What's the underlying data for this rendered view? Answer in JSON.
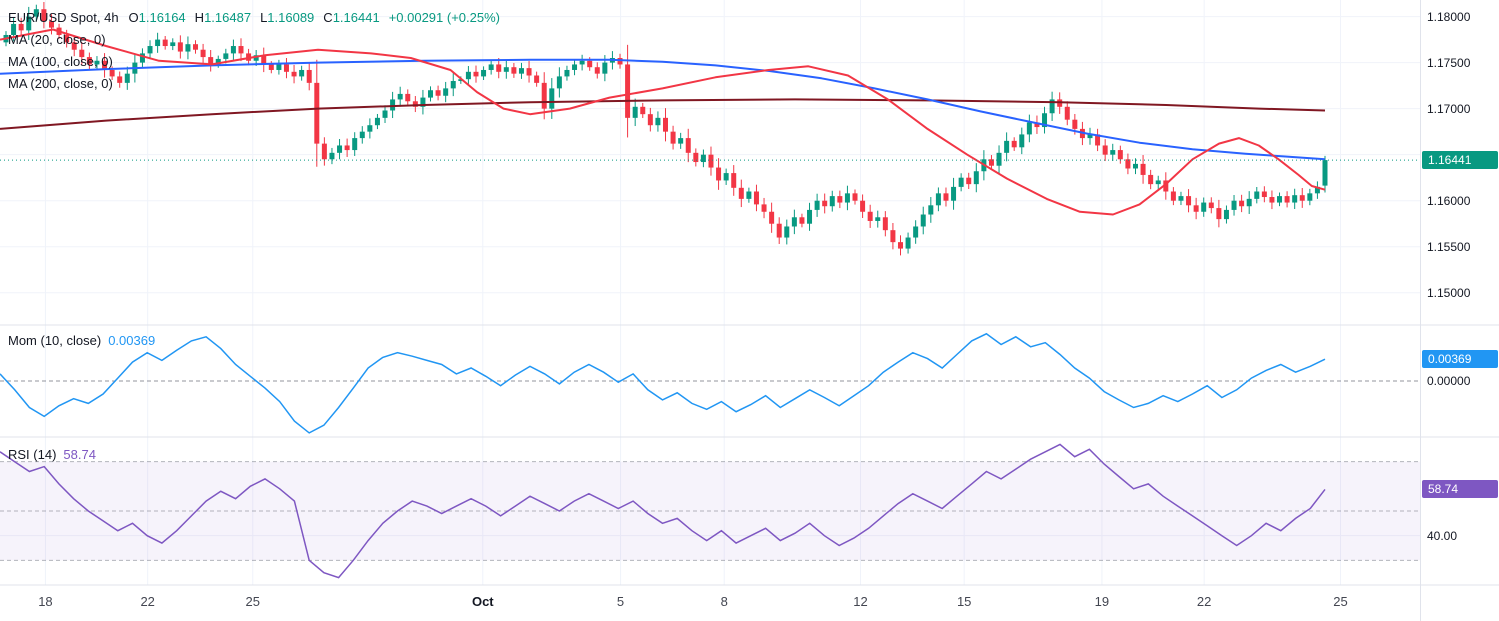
{
  "colors": {
    "up": "#089981",
    "down": "#f23645",
    "ma20": "#f23645",
    "ma100": "#2962ff",
    "ma200": "#801722",
    "mom": "#2196f3",
    "rsi": "#7e57c2",
    "grid": "#f0f3fa",
    "separator": "#e0e3eb",
    "dashed": "#787b86",
    "axis_text": "#131722",
    "time_text": "#434651",
    "legend_text": "#131722",
    "price_badge_bg": "#089981",
    "mom_badge_bg": "#2196f3",
    "rsi_badge_bg": "#7e57c2"
  },
  "legend": {
    "symbol": "EUR/USD Spot, 4h",
    "open_label": "O",
    "open": "1.16164",
    "high_label": "H",
    "high": "1.16487",
    "low_label": "L",
    "low": "1.16089",
    "close_label": "C",
    "close": "1.16441",
    "change": "+0.00291 (+0.25%)",
    "overlays": [
      "MA (20, close, 0)",
      "MA (100, close, 0)",
      "MA (200, close, 0)"
    ]
  },
  "mom_legend": {
    "label": "Mom (10, close)",
    "value": "0.00369"
  },
  "rsi_legend": {
    "label": "RSI (14)",
    "value": "58.74"
  },
  "axis": {
    "price_ticks": [
      {
        "label": "1.18000",
        "value": 1.18
      },
      {
        "label": "1.17500",
        "value": 1.175
      },
      {
        "label": "1.17000",
        "value": 1.17
      },
      {
        "label": "1.16000",
        "value": 1.16
      },
      {
        "label": "1.15500",
        "value": 1.155
      },
      {
        "label": "1.15000",
        "value": 1.15
      }
    ],
    "price_badge": {
      "label": "1.16441",
      "value": 1.16441
    },
    "mom_ticks": [
      {
        "label": "0.00000",
        "value": 0
      }
    ],
    "mom_badge": {
      "label": "0.00369",
      "value": 0.00369
    },
    "rsi_ticks": [
      {
        "label": "40.00",
        "value": 40
      }
    ],
    "rsi_badge": {
      "label": "58.74",
      "value": 58.74
    },
    "time_ticks": [
      {
        "label": "18",
        "f": 0.032,
        "bold": false
      },
      {
        "label": "22",
        "f": 0.104,
        "bold": false
      },
      {
        "label": "25",
        "f": 0.178,
        "bold": false
      },
      {
        "label": "Oct",
        "f": 0.34,
        "bold": true
      },
      {
        "label": "5",
        "f": 0.437,
        "bold": false
      },
      {
        "label": "8",
        "f": 0.51,
        "bold": false
      },
      {
        "label": "12",
        "f": 0.606,
        "bold": false
      },
      {
        "label": "15",
        "f": 0.679,
        "bold": false
      },
      {
        "label": "19",
        "f": 0.776,
        "bold": false
      },
      {
        "label": "22",
        "f": 0.848,
        "bold": false
      },
      {
        "label": "25",
        "f": 0.944,
        "bold": false
      }
    ]
  },
  "chart_data": [
    {
      "type": "candlestick",
      "title": "EUR/USD Spot, 4h",
      "ylim": [
        1.1465,
        1.1818
      ],
      "y_ticks": [
        1.18,
        1.175,
        1.17,
        1.165,
        1.16,
        1.155,
        1.15
      ],
      "x_labels": [
        "18",
        "22",
        "25",
        "Oct",
        "5",
        "8",
        "12",
        "15",
        "19",
        "22",
        "25"
      ],
      "last_candle": {
        "open": 1.16164,
        "high": 1.16487,
        "low": 1.16089,
        "close": 1.16441,
        "change_abs": 0.00291,
        "change_pct": 0.25
      },
      "closes": [
        1.178,
        1.1792,
        1.1785,
        1.18,
        1.1808,
        1.1795,
        1.1788,
        1.178,
        1.1772,
        1.1764,
        1.1756,
        1.1748,
        1.1752,
        1.1742,
        1.1735,
        1.1728,
        1.1738,
        1.175,
        1.176,
        1.1768,
        1.1775,
        1.1768,
        1.1772,
        1.1762,
        1.177,
        1.1764,
        1.1756,
        1.1748,
        1.1754,
        1.176,
        1.1768,
        1.176,
        1.1752,
        1.1758,
        1.1748,
        1.1742,
        1.1748,
        1.174,
        1.1735,
        1.1742,
        1.1728,
        1.1662,
        1.1645,
        1.1652,
        1.166,
        1.1655,
        1.1668,
        1.1675,
        1.1682,
        1.169,
        1.1698,
        1.171,
        1.1716,
        1.1708,
        1.1702,
        1.1712,
        1.172,
        1.1714,
        1.1722,
        1.173,
        1.1732,
        1.174,
        1.1735,
        1.1742,
        1.1748,
        1.174,
        1.1745,
        1.1738,
        1.1744,
        1.1736,
        1.1728,
        1.17,
        1.1722,
        1.1735,
        1.1742,
        1.1748,
        1.1752,
        1.1745,
        1.1738,
        1.175,
        1.1755,
        1.1748,
        1.169,
        1.1702,
        1.1694,
        1.1682,
        1.169,
        1.1675,
        1.1662,
        1.1668,
        1.1652,
        1.1642,
        1.165,
        1.1636,
        1.1622,
        1.163,
        1.1614,
        1.1602,
        1.161,
        1.1596,
        1.1588,
        1.1575,
        1.156,
        1.1572,
        1.1582,
        1.1575,
        1.159,
        1.16,
        1.1594,
        1.1605,
        1.1598,
        1.1608,
        1.16,
        1.1588,
        1.1578,
        1.1582,
        1.1568,
        1.1555,
        1.1548,
        1.156,
        1.1572,
        1.1585,
        1.1595,
        1.1608,
        1.16,
        1.1615,
        1.1625,
        1.1618,
        1.1632,
        1.1645,
        1.1638,
        1.1652,
        1.1665,
        1.1658,
        1.1672,
        1.1685,
        1.168,
        1.1695,
        1.171,
        1.1702,
        1.1688,
        1.1678,
        1.1668,
        1.1672,
        1.166,
        1.165,
        1.1655,
        1.1645,
        1.1635,
        1.164,
        1.1628,
        1.1618,
        1.1622,
        1.161,
        1.16,
        1.1605,
        1.1595,
        1.1588,
        1.1598,
        1.1592,
        1.158,
        1.159,
        1.16,
        1.1594,
        1.1602,
        1.161,
        1.1604,
        1.1598,
        1.1605,
        1.1598,
        1.1606,
        1.16,
        1.1608,
        1.1615,
        1.16441
      ],
      "overlays": [
        {
          "name": "MA (20, close, 0)",
          "color_key": "ma20",
          "points": [
            [
              0,
              1.1775
            ],
            [
              0.04,
              1.1786
            ],
            [
              0.08,
              1.1768
            ],
            [
              0.12,
              1.1752
            ],
            [
              0.16,
              1.1748
            ],
            [
              0.2,
              1.1758
            ],
            [
              0.24,
              1.1764
            ],
            [
              0.28,
              1.176
            ],
            [
              0.31,
              1.1755
            ],
            [
              0.34,
              1.1742
            ],
            [
              0.36,
              1.1718
            ],
            [
              0.38,
              1.17
            ],
            [
              0.4,
              1.1694
            ],
            [
              0.43,
              1.17
            ],
            [
              0.46,
              1.1712
            ],
            [
              0.5,
              1.1722
            ],
            [
              0.54,
              1.1734
            ],
            [
              0.58,
              1.1742
            ],
            [
              0.61,
              1.1746
            ],
            [
              0.64,
              1.1736
            ],
            [
              0.67,
              1.171
            ],
            [
              0.7,
              1.1678
            ],
            [
              0.73,
              1.165
            ],
            [
              0.76,
              1.1624
            ],
            [
              0.79,
              1.1602
            ],
            [
              0.815,
              1.1588
            ],
            [
              0.84,
              1.1585
            ],
            [
              0.86,
              1.1596
            ],
            [
              0.88,
              1.1618
            ],
            [
              0.9,
              1.1645
            ],
            [
              0.92,
              1.1662
            ],
            [
              0.935,
              1.1668
            ],
            [
              0.95,
              1.166
            ],
            [
              0.965,
              1.1645
            ],
            [
              0.98,
              1.1628
            ],
            [
              0.99,
              1.1616
            ],
            [
              1,
              1.1612
            ]
          ]
        },
        {
          "name": "MA (100, close, 0)",
          "color_key": "ma100",
          "points": [
            [
              0,
              1.1738
            ],
            [
              0.08,
              1.1743
            ],
            [
              0.16,
              1.1747
            ],
            [
              0.24,
              1.175
            ],
            [
              0.32,
              1.1752
            ],
            [
              0.4,
              1.1753
            ],
            [
              0.46,
              1.1753
            ],
            [
              0.5,
              1.1751
            ],
            [
              0.54,
              1.1747
            ],
            [
              0.58,
              1.1741
            ],
            [
              0.62,
              1.1733
            ],
            [
              0.66,
              1.1722
            ],
            [
              0.7,
              1.171
            ],
            [
              0.74,
              1.1697
            ],
            [
              0.78,
              1.1685
            ],
            [
              0.82,
              1.1673
            ],
            [
              0.86,
              1.1663
            ],
            [
              0.9,
              1.1656
            ],
            [
              0.94,
              1.1651
            ],
            [
              0.97,
              1.1648
            ],
            [
              1,
              1.1645
            ]
          ]
        },
        {
          "name": "MA (200, close, 0)",
          "color_key": "ma200",
          "points": [
            [
              0,
              1.1678
            ],
            [
              0.08,
              1.1687
            ],
            [
              0.16,
              1.1694
            ],
            [
              0.24,
              1.17
            ],
            [
              0.32,
              1.1704
            ],
            [
              0.4,
              1.1707
            ],
            [
              0.5,
              1.1709
            ],
            [
              0.6,
              1.171
            ],
            [
              0.7,
              1.1709
            ],
            [
              0.8,
              1.1707
            ],
            [
              0.88,
              1.1704
            ],
            [
              0.95,
              1.17
            ],
            [
              1,
              1.1698
            ]
          ]
        }
      ]
    },
    {
      "type": "line",
      "title": "Mom (10, close)",
      "current": 0.00369,
      "ylim": [
        -0.0095,
        0.0095
      ],
      "baseline": 0,
      "values": [
        0.0012,
        -0.0015,
        -0.0045,
        -0.006,
        -0.0042,
        -0.003,
        -0.0038,
        -0.0022,
        0.0005,
        0.0032,
        0.0048,
        0.0035,
        0.0052,
        0.0068,
        0.0075,
        0.0055,
        0.0028,
        0.0008,
        -0.0012,
        -0.0035,
        -0.0068,
        -0.0088,
        -0.0075,
        -0.0045,
        -0.0012,
        0.0022,
        0.004,
        0.0048,
        0.0042,
        0.0035,
        0.0028,
        0.0012,
        0.0022,
        0.0008,
        -0.0008,
        0.001,
        0.0025,
        0.0012,
        -0.0005,
        0.0015,
        0.0028,
        0.0015,
        -0.0002,
        0.0012,
        -0.0015,
        -0.0032,
        -0.002,
        -0.0038,
        -0.0048,
        -0.0035,
        -0.0052,
        -0.004,
        -0.0025,
        -0.0045,
        -0.003,
        -0.0015,
        -0.0028,
        -0.0042,
        -0.0025,
        -0.0008,
        0.0015,
        0.0032,
        0.0048,
        0.0038,
        0.0022,
        0.0045,
        0.0068,
        0.008,
        0.0062,
        0.0075,
        0.0058,
        0.0065,
        0.0045,
        0.0022,
        0.0005,
        -0.0018,
        -0.0032,
        -0.0045,
        -0.0038,
        -0.0025,
        -0.0035,
        -0.0022,
        -0.0008,
        -0.0028,
        -0.0015,
        0.0005,
        0.0018,
        0.0028,
        0.0015,
        0.0025,
        0.00369
      ]
    },
    {
      "type": "line",
      "title": "RSI (14)",
      "current": 58.74,
      "ylim": [
        20,
        80
      ],
      "band": [
        30,
        70
      ],
      "mid": 50,
      "tick": 40,
      "values": [
        74,
        70,
        66,
        68,
        61,
        55,
        50,
        46,
        42,
        45,
        40,
        37,
        42,
        48,
        54,
        58,
        55,
        60,
        63,
        59,
        54,
        30,
        25,
        23,
        30,
        38,
        45,
        50,
        54,
        52,
        49,
        52,
        55,
        52,
        48,
        52,
        56,
        53,
        50,
        54,
        57,
        54,
        51,
        54,
        49,
        45,
        47,
        42,
        38,
        42,
        37,
        40,
        43,
        38,
        41,
        45,
        40,
        36,
        39,
        43,
        48,
        53,
        57,
        54,
        51,
        56,
        61,
        66,
        63,
        67,
        71,
        74,
        77,
        72,
        75,
        69,
        64,
        59,
        61,
        56,
        52,
        48,
        44,
        40,
        36,
        40,
        45,
        42,
        47,
        51,
        58.74
      ]
    }
  ]
}
